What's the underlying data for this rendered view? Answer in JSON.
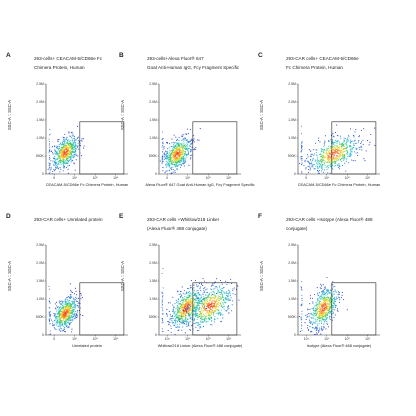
{
  "chart_data": [
    {
      "panel_letter": "A",
      "type": "scatter",
      "title_lines": [
        "293-cells+ CEACAM-5/CD66e Fc",
        "Chimera Protein, Human"
      ],
      "xlabel": "CEACAM-5/CD66e Fc Chimera Protein, Human",
      "ylabel": "SSC-A :: SSC-A",
      "y_ticks": [
        "2.5M",
        "2.0M",
        "1.5M",
        "1.0M",
        "500K",
        "0"
      ],
      "x_ticks": [
        "0",
        "10⁴",
        "10⁵",
        "10⁶"
      ],
      "ylim": [
        0,
        2500000
      ],
      "population": {
        "x_log": 3.55,
        "y_center": 600000,
        "x_spread": 0.32,
        "y_spread": 240000
      },
      "gate": {
        "x_min_log": 4.25,
        "x_max_log": 6.4,
        "y_min": 0,
        "y_max": 1450000
      },
      "grid": false
    },
    {
      "panel_letter": "B",
      "type": "scatter",
      "title_lines": [
        "293-cells+Alexa Fluor® 647",
        "Goat Anti-Human IgG, Fcγ Fragment Specific"
      ],
      "xlabel": "Alexa Fluor® 647 Goat Anti-Human IgG, Fcγ Fragment Specific",
      "ylabel": "SSC-A :: SSC-A",
      "y_ticks": [
        "2.5M",
        "2.0M",
        "1.5M",
        "1.0M",
        "500K",
        "0"
      ],
      "x_ticks": [
        "0",
        "10⁴",
        "10⁵",
        "10⁶"
      ],
      "ylim": [
        0,
        2500000
      ],
      "population": {
        "x_log": 3.5,
        "y_center": 550000,
        "x_spread": 0.34,
        "y_spread": 240000
      },
      "gate": {
        "x_min_log": 4.25,
        "x_max_log": 6.4,
        "y_min": 0,
        "y_max": 1450000
      },
      "grid": false
    },
    {
      "panel_letter": "C",
      "type": "scatter",
      "title_lines": [
        "293-CAR cells+ CEACAM-5/CD66e",
        "Fc Chimera Protein, Human"
      ],
      "xlabel": "CEACAM-5/CD66e Fc Chimera Protein, Human",
      "ylabel": "SSC-A :: SSC-A",
      "y_ticks": [
        "2.5M",
        "2.0M",
        "1.5M",
        "1.0M",
        "500K",
        "0"
      ],
      "x_ticks": [
        "0",
        "10⁴",
        "10⁵",
        "10⁶"
      ],
      "ylim": [
        0,
        2500000
      ],
      "population": {
        "x_log": 4.35,
        "y_center": 550000,
        "x_spread": 0.6,
        "y_spread": 260000
      },
      "gate": {
        "x_min_log": 4.25,
        "x_max_log": 6.4,
        "y_min": 0,
        "y_max": 1450000
      },
      "grid": false
    },
    {
      "panel_letter": "D",
      "type": "scatter",
      "title_lines": [
        "293-CAR cells+ Unrelated protein"
      ],
      "xlabel": "Unrelated protein",
      "ylabel": "SSC-A :: SSC-A",
      "y_ticks": [
        "2.5M",
        "2.0M",
        "1.5M",
        "1.0M",
        "500K",
        "0"
      ],
      "x_ticks": [
        "0",
        "10⁴",
        "10⁵",
        "10⁶"
      ],
      "ylim": [
        0,
        2500000
      ],
      "population": {
        "x_log": 3.55,
        "y_center": 600000,
        "x_spread": 0.3,
        "y_spread": 240000
      },
      "gate": {
        "x_min_log": 4.25,
        "x_max_log": 6.4,
        "y_min": 0,
        "y_max": 1450000
      },
      "grid": false
    },
    {
      "panel_letter": "E",
      "type": "scatter",
      "title_lines": [
        "293-CAR cells +Whitlow/218 Linker",
        "(Alexa Fluor® 488 conjugate)"
      ],
      "xlabel": "Whitlow/218 Linker (Alexa Fluor® 488 conjugate)",
      "ylabel": "SSC-A :: SSC-A",
      "y_ticks": [
        "2.5M",
        "2.0M",
        "1.5M",
        "1.0M",
        "500K",
        "0"
      ],
      "x_ticks": [
        "10³",
        "10⁴",
        "10⁵",
        "10⁶"
      ],
      "ylim": [
        0,
        2500000
      ],
      "population": {
        "x_log": 3.95,
        "y_center": 750000,
        "x_spread": 0.4,
        "y_spread": 300000
      },
      "second_population": {
        "x_log": 5.1,
        "y_center": 800000,
        "x_spread": 0.55,
        "y_spread": 320000
      },
      "gate": {
        "x_min_log": 4.25,
        "x_max_log": 6.4,
        "y_min": 0,
        "y_max": 1450000
      },
      "grid": false
    },
    {
      "panel_letter": "F",
      "type": "scatter",
      "title_lines": [
        "293-CAR cells +Isotype (Alexa Fluor® 488 conjugate)"
      ],
      "xlabel": "Isotype (Alexa Fluor® 488 conjugate)",
      "ylabel": "SSC-A :: SSC-A",
      "y_ticks": [
        "2.5M",
        "2.0M",
        "1.5M",
        "1.0M",
        "500K",
        "0"
      ],
      "x_ticks": [
        "10³",
        "10⁴",
        "10⁵",
        "10⁶"
      ],
      "ylim": [
        0,
        2500000
      ],
      "population": {
        "x_log": 3.85,
        "y_center": 750000,
        "x_spread": 0.35,
        "y_spread": 300000
      },
      "gate": {
        "x_min_log": 4.25,
        "x_max_log": 6.4,
        "y_min": 0,
        "y_max": 1450000
      },
      "grid": false
    }
  ]
}
